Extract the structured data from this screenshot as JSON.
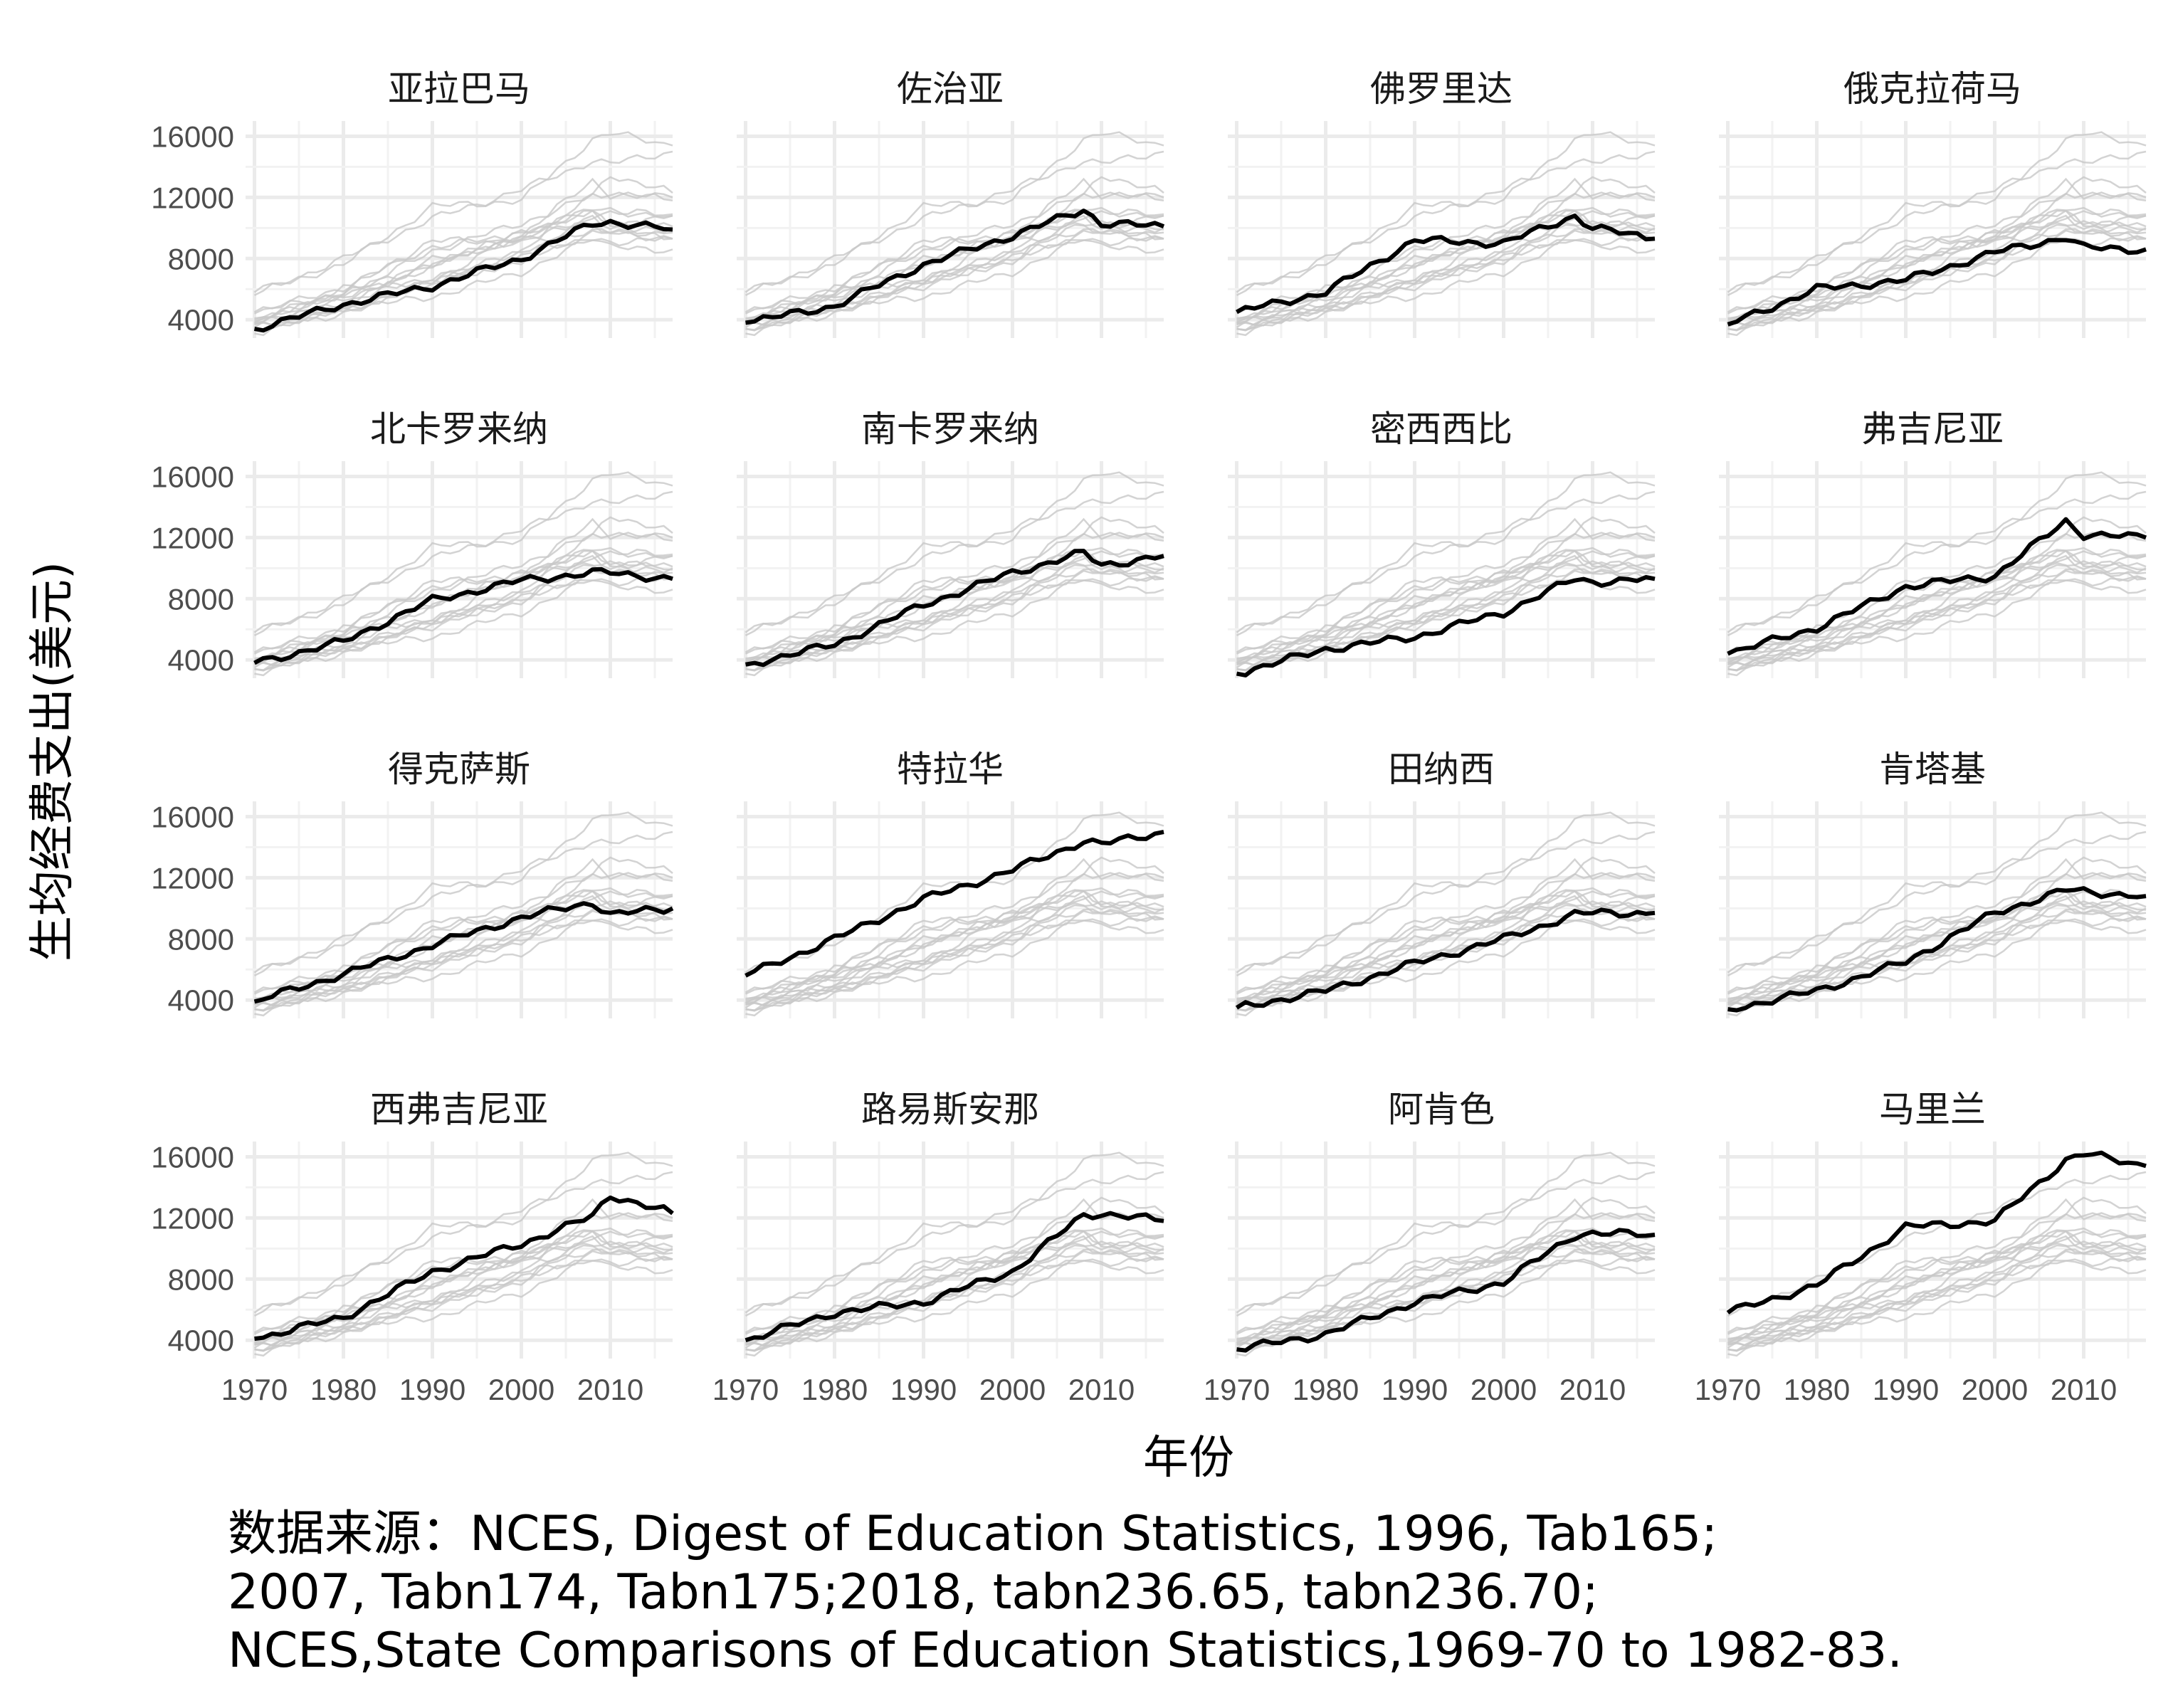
{
  "chart_data": {
    "type": "line",
    "layout": "small-multiples 4x4",
    "xlabel": "年份",
    "ylabel": "生均经费支出(美元)",
    "x_ticks": [
      1970,
      1980,
      1990,
      2000,
      2010
    ],
    "y_ticks": [
      4000,
      8000,
      12000,
      16000
    ],
    "xlim": [
      1969,
      2017
    ],
    "ylim": [
      2800,
      17000
    ],
    "grid": true,
    "highlight_color": "#000000",
    "background_color": "#c8c8c8",
    "x": [
      1970,
      1980,
      1990,
      2000,
      2008,
      2010,
      2017
    ],
    "series": [
      {
        "name": "亚拉巴马",
        "values": [
          3400,
          5000,
          6200,
          8000,
          10300,
          10400,
          9900
        ]
      },
      {
        "name": "佐治亚",
        "values": [
          3800,
          4900,
          7600,
          9500,
          11200,
          10300,
          10100
        ]
      },
      {
        "name": "佛罗里达",
        "values": [
          4500,
          5800,
          9200,
          9000,
          10800,
          10000,
          9300
        ]
      },
      {
        "name": "俄克拉荷马",
        "values": [
          3700,
          6000,
          6600,
          8400,
          9400,
          8700,
          8600
        ]
      },
      {
        "name": "北卡罗来纳",
        "values": [
          3800,
          5200,
          7900,
          9200,
          9700,
          9700,
          9300
        ]
      },
      {
        "name": "南卡罗来纳",
        "values": [
          3700,
          5000,
          7600,
          9700,
          11000,
          10200,
          10800
        ]
      },
      {
        "name": "密西西比",
        "values": [
          3100,
          4700,
          5500,
          7100,
          9300,
          9100,
          9300
        ]
      },
      {
        "name": "弗吉尼亚",
        "values": [
          4400,
          6100,
          8800,
          9500,
          13100,
          12200,
          12000
        ]
      },
      {
        "name": "得克萨斯",
        "values": [
          3900,
          5700,
          7600,
          9400,
          10400,
          9600,
          10000
        ]
      },
      {
        "name": "特拉华",
        "values": [
          5600,
          8000,
          10600,
          12500,
          14400,
          14200,
          15000
        ]
      },
      {
        "name": "田纳西",
        "values": [
          3500,
          4600,
          6400,
          8000,
          9600,
          9700,
          9700
        ]
      },
      {
        "name": "肯塔基",
        "values": [
          3400,
          4600,
          6500,
          9700,
          11200,
          11100,
          10800
        ]
      },
      {
        "name": "西弗吉尼亚",
        "values": [
          4100,
          5500,
          8500,
          10300,
          12100,
          13500,
          12300
        ]
      },
      {
        "name": "路易斯安那",
        "values": [
          4000,
          5800,
          6500,
          8500,
          12200,
          12300,
          11800
        ]
      },
      {
        "name": "阿肯色",
        "values": [
          3400,
          4400,
          6500,
          7800,
          10900,
          11000,
          10900
        ]
      },
      {
        "name": "马里兰",
        "values": [
          5800,
          7600,
          11400,
          11800,
          15800,
          16200,
          15400
        ]
      }
    ]
  },
  "caption": {
    "line1": "数据来源：NCES, Digest of Education Statistics, 1996, Tab165;",
    "line2": "2007, Tabn174, Tabn175;2018, tabn236.65, tabn236.70;",
    "line3": "NCES,State Comparisons of Education Statistics,1969-70 to 1982-83."
  }
}
